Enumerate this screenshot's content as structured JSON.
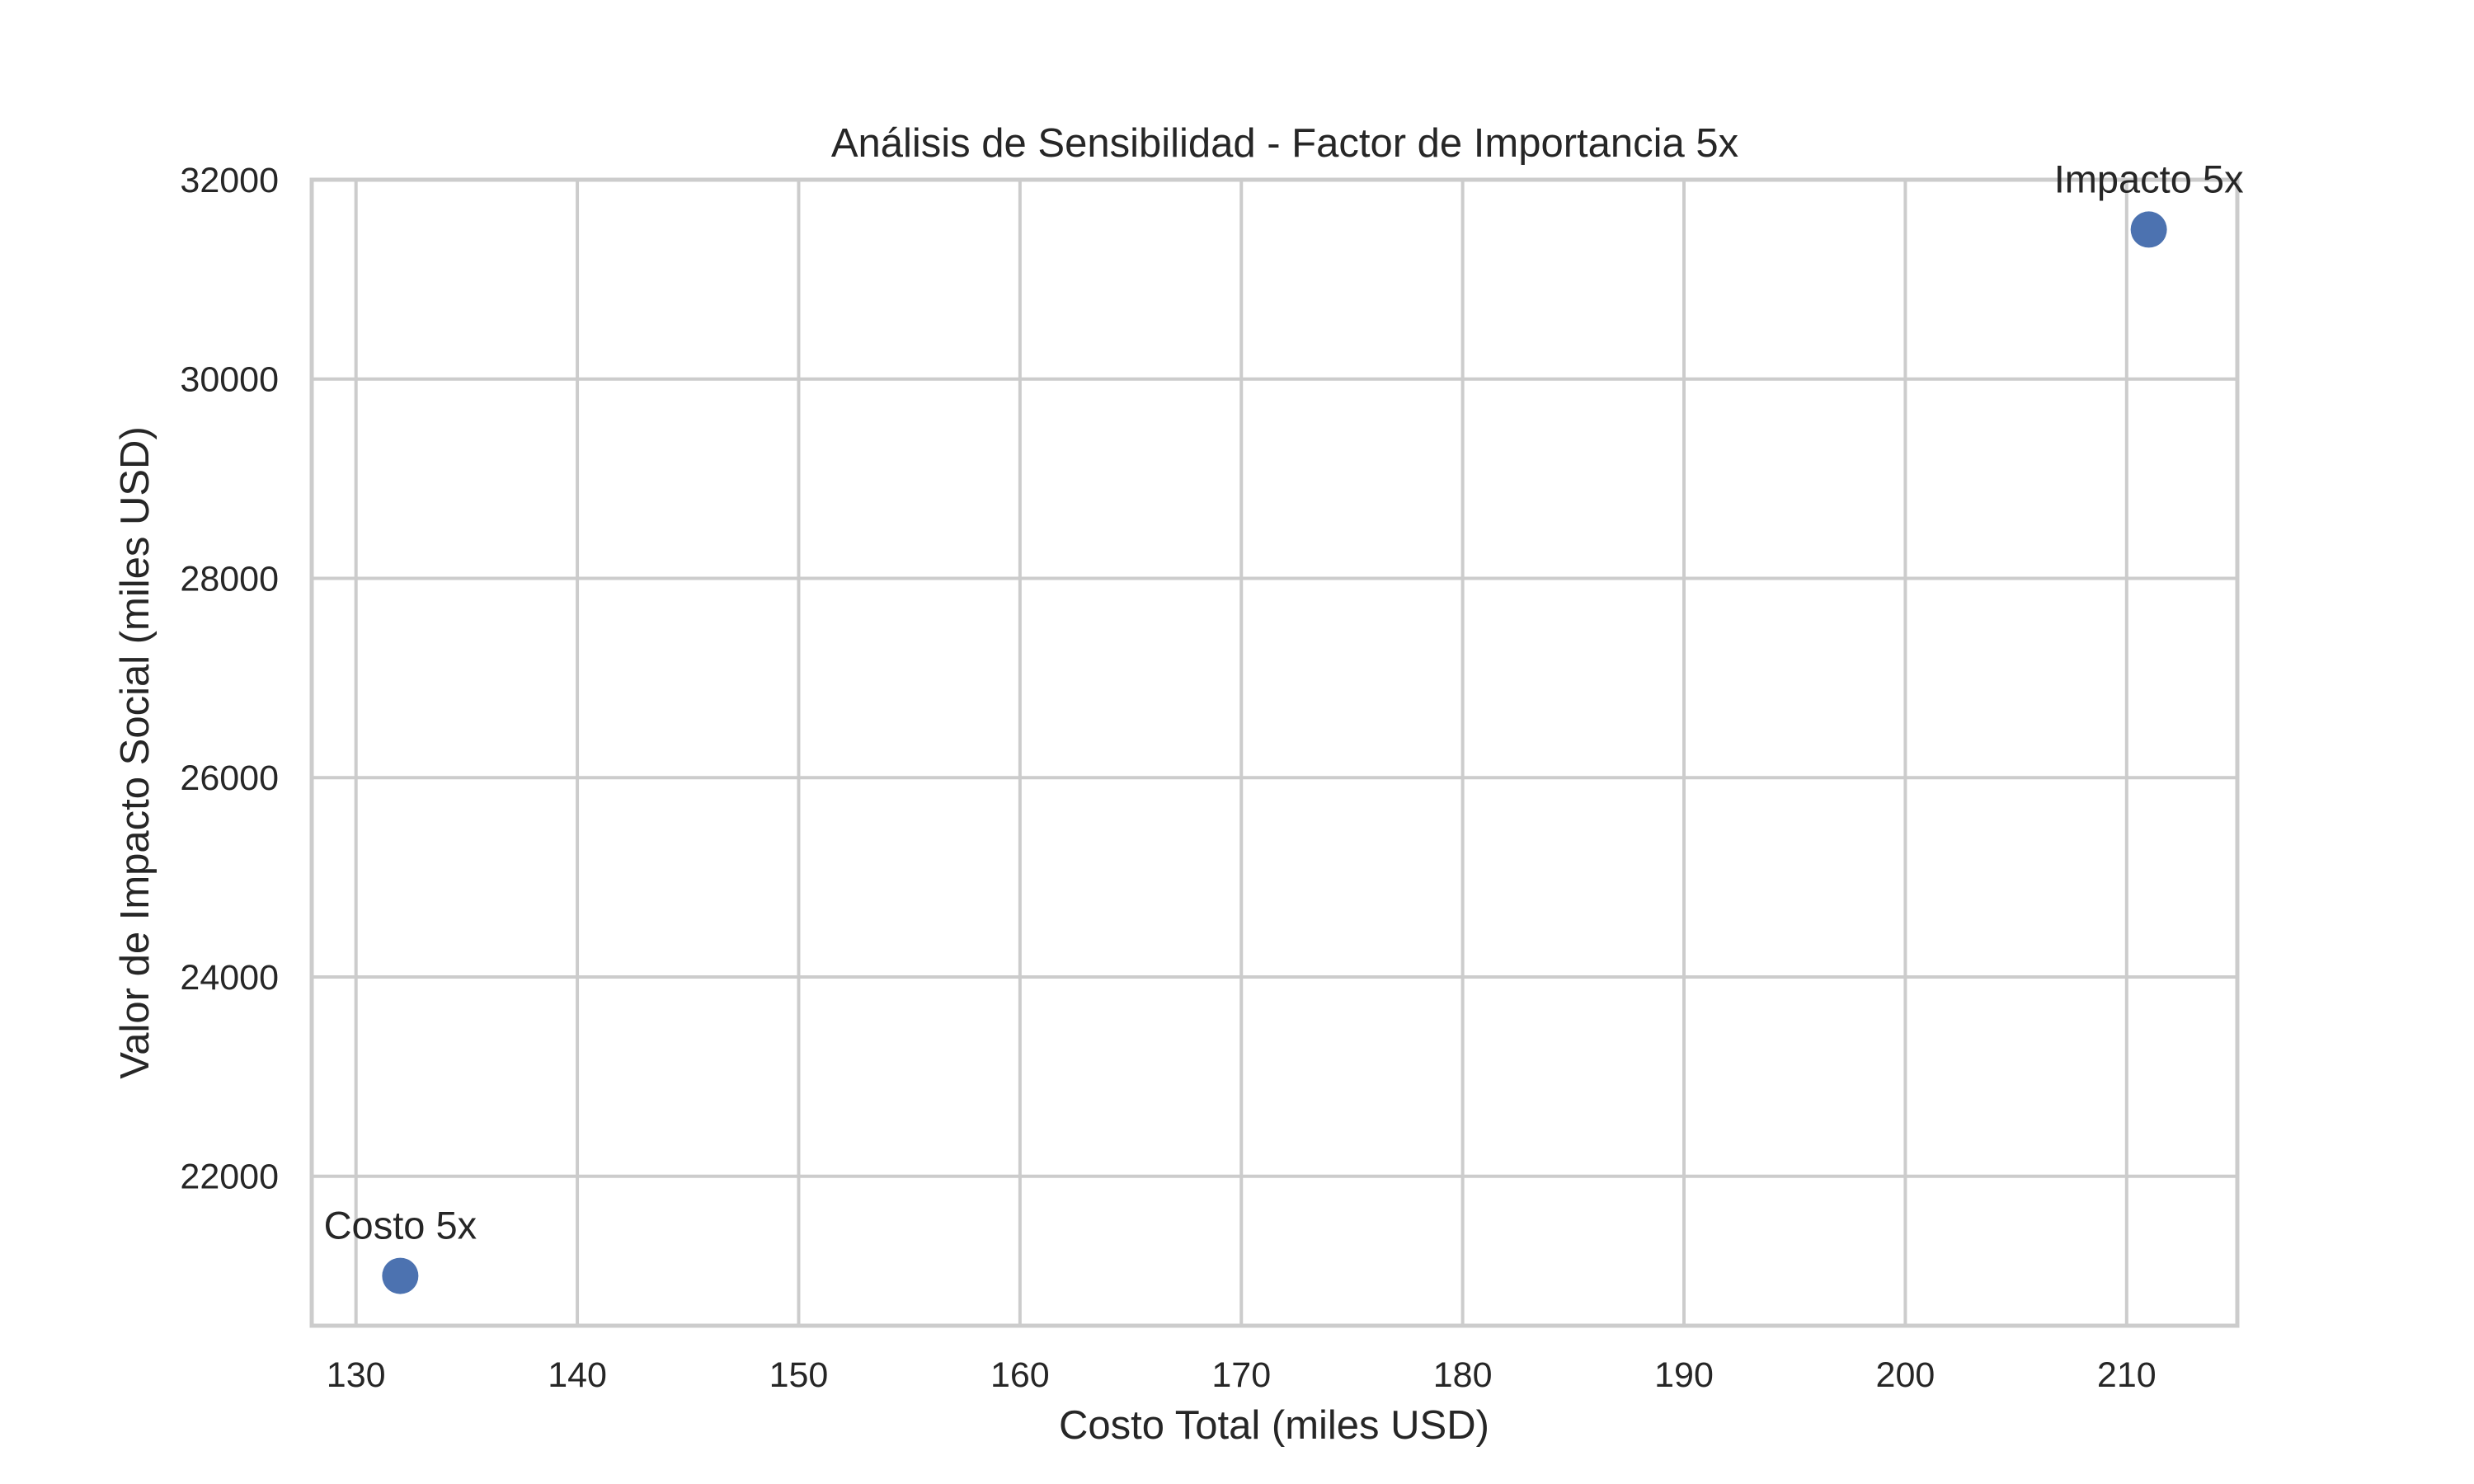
{
  "chart_data": {
    "type": "scatter",
    "title": "Análisis de Sensibilidad - Factor de Importancia 5x",
    "xlabel": "Costo Total (miles USD)",
    "ylabel": "Valor de Impacto Social (miles USD)",
    "xlim": [
      128,
      215
    ],
    "ylim": [
      20500,
      32000
    ],
    "xticks": [
      130,
      140,
      150,
      160,
      170,
      180,
      190,
      200,
      210
    ],
    "yticks": [
      22000,
      24000,
      26000,
      28000,
      30000,
      32000
    ],
    "grid": true,
    "point_color": "#4c72b0",
    "points": [
      {
        "label": "Costo 5x",
        "x": 132,
        "y": 21000
      },
      {
        "label": "Impacto 5x",
        "x": 211,
        "y": 31500
      }
    ]
  }
}
